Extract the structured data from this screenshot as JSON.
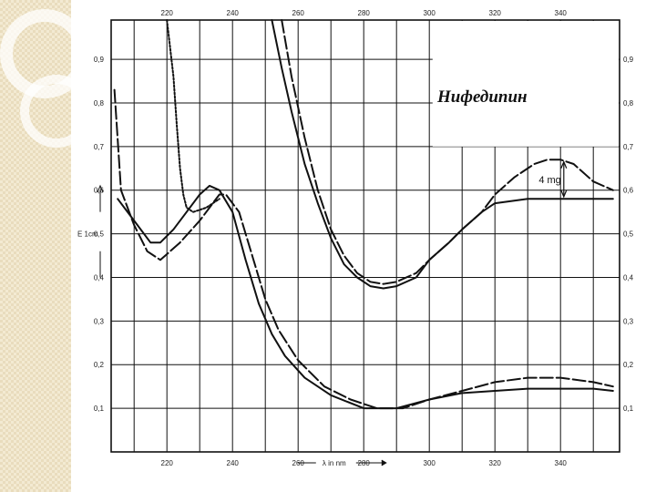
{
  "chart_data": {
    "type": "line",
    "title": "Нифедипин",
    "xlabel": "λ in nm",
    "ylabel": "E 1cm",
    "xlim": [
      203,
      358
    ],
    "ylim": [
      0,
      0.99
    ],
    "x_ticks_top": [
      "220",
      "240",
      "260",
      "280",
      "300",
      "320",
      "340"
    ],
    "x_ticks_bottom": [
      "220",
      "240",
      "260",
      "280",
      "300",
      "320",
      "340"
    ],
    "y_ticks": [
      "0,9",
      "0,8",
      "0,7",
      "0,6",
      "0,5",
      "0,4",
      "0,3",
      "0,2",
      "0,1"
    ],
    "annotation": "4 mg",
    "grid": true,
    "series": [
      {
        "style": "solid",
        "x": [
          205,
          207,
          211,
          215,
          218,
          222,
          226,
          230,
          233,
          236,
          240,
          244,
          248,
          252,
          256,
          262,
          270,
          280,
          290,
          300,
          310,
          320,
          330,
          340,
          350,
          356
        ],
        "y": [
          0.58,
          0.56,
          0.52,
          0.48,
          0.48,
          0.51,
          0.55,
          0.59,
          0.61,
          0.6,
          0.55,
          0.44,
          0.34,
          0.27,
          0.22,
          0.17,
          0.13,
          0.1,
          0.1,
          0.12,
          0.135,
          0.14,
          0.145,
          0.145,
          0.145,
          0.14
        ]
      },
      {
        "style": "long-dash",
        "x": [
          204,
          206,
          210,
          214,
          218,
          224,
          230,
          236,
          238,
          242,
          246,
          250,
          254,
          260,
          268,
          276,
          284,
          292,
          300,
          310,
          320,
          330,
          340,
          350,
          356
        ],
        "y": [
          0.83,
          0.6,
          0.52,
          0.46,
          0.44,
          0.48,
          0.53,
          0.59,
          0.59,
          0.55,
          0.45,
          0.35,
          0.28,
          0.21,
          0.15,
          0.12,
          0.1,
          0.1,
          0.12,
          0.14,
          0.16,
          0.17,
          0.17,
          0.16,
          0.15
        ]
      },
      {
        "style": "solid",
        "x": [
          252,
          255,
          258,
          262,
          266,
          270,
          274,
          278,
          282,
          286,
          290,
          296,
          300,
          306,
          310,
          316,
          320,
          330,
          340,
          350,
          356
        ],
        "y": [
          0.99,
          0.88,
          0.78,
          0.66,
          0.57,
          0.49,
          0.43,
          0.4,
          0.38,
          0.375,
          0.38,
          0.4,
          0.44,
          0.48,
          0.51,
          0.55,
          0.57,
          0.58,
          0.58,
          0.58,
          0.58
        ]
      },
      {
        "style": "long-dash",
        "x": [
          255,
          258,
          262,
          266,
          270,
          274,
          278,
          282,
          286,
          290,
          296,
          300,
          306,
          310,
          316,
          320,
          326,
          332,
          336,
          340,
          344,
          350,
          356
        ],
        "y": [
          0.99,
          0.86,
          0.72,
          0.6,
          0.51,
          0.45,
          0.41,
          0.39,
          0.385,
          0.39,
          0.41,
          0.44,
          0.48,
          0.51,
          0.55,
          0.59,
          0.63,
          0.66,
          0.67,
          0.67,
          0.66,
          0.62,
          0.6
        ]
      },
      {
        "style": "dotted",
        "x": [
          220,
          222,
          223,
          224,
          225,
          226,
          228,
          232,
          236
        ],
        "y": [
          0.99,
          0.86,
          0.75,
          0.65,
          0.59,
          0.56,
          0.55,
          0.56,
          0.58
        ]
      }
    ]
  }
}
